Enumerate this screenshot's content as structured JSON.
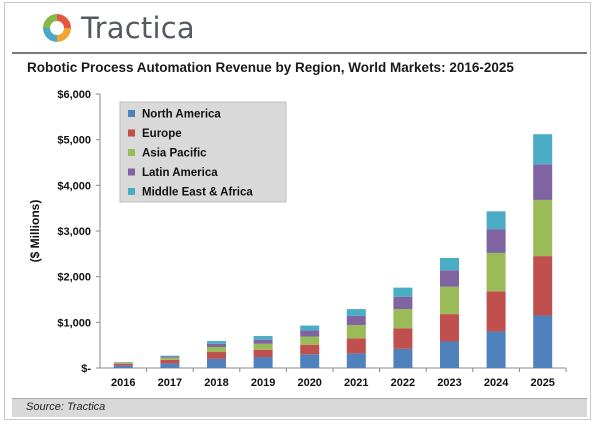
{
  "brand": {
    "name": "Tractica"
  },
  "footer": {
    "source": "Source: Tractica"
  },
  "colors": {
    "north_america": "#4f81bd",
    "europe": "#c0504d",
    "asia_pacific": "#9bbb59",
    "latin_america": "#8064a2",
    "middle_east_africa": "#4bacc6"
  },
  "chart_data": {
    "type": "bar",
    "stacked": true,
    "title": "Robotic Process Automation Revenue by Region, World Markets: 2016-2025",
    "xlabel": "",
    "ylabel": "($ Millions)",
    "ylim": [
      0,
      6000
    ],
    "yticks": [
      "$-",
      "$1,000",
      "$2,000",
      "$3,000",
      "$4,000",
      "$5,000",
      "$6,000"
    ],
    "grid": false,
    "legend": "top-left",
    "categories": [
      "2016",
      "2017",
      "2018",
      "2019",
      "2020",
      "2021",
      "2022",
      "2023",
      "2024",
      "2025"
    ],
    "series": [
      {
        "name": "North America",
        "color": "#4f81bd",
        "values": [
          50,
          100,
          200,
          240,
          300,
          320,
          420,
          580,
          800,
          1150
        ]
      },
      {
        "name": "Europe",
        "color": "#c0504d",
        "values": [
          40,
          80,
          150,
          160,
          210,
          330,
          450,
          600,
          880,
          1300
        ]
      },
      {
        "name": "Asia Pacific",
        "color": "#9bbb59",
        "values": [
          25,
          45,
          110,
          130,
          180,
          290,
          420,
          600,
          840,
          1230
        ]
      },
      {
        "name": "Latin America",
        "color": "#8064a2",
        "values": [
          10,
          25,
          70,
          90,
          130,
          200,
          270,
          360,
          520,
          780
        ]
      },
      {
        "name": "Middle East & Africa",
        "color": "#4bacc6",
        "values": [
          5,
          20,
          60,
          80,
          110,
          150,
          200,
          270,
          390,
          660
        ]
      }
    ]
  }
}
